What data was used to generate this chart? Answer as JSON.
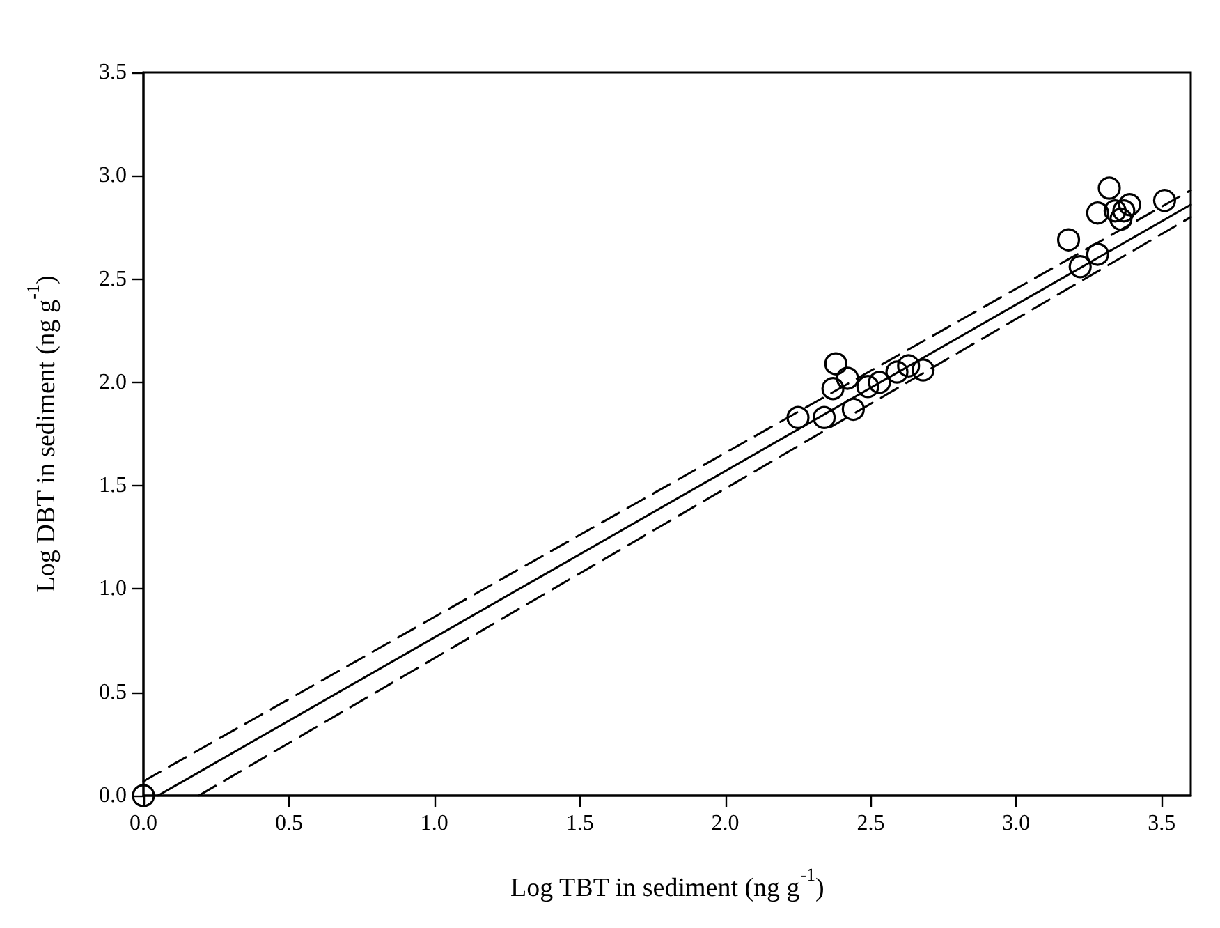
{
  "chart_data": {
    "type": "scatter",
    "xlabel": "Log TBT in sediment (ng g$^{-1}$)",
    "ylabel": "Log DBT in sediment (ng g$^{-1}$)",
    "xlim": [
      0,
      3.6
    ],
    "ylim": [
      0,
      3.5
    ],
    "xticks": [
      {
        "value": 0,
        "label": "0.0"
      },
      0.5,
      {
        "value": 1,
        "label": "1.0"
      },
      1.5,
      {
        "value": 2,
        "label": "2.0"
      },
      2.5,
      {
        "value": 3,
        "label": "3.0"
      },
      3.5
    ],
    "yticks": [
      {
        "value": 0,
        "label": "0.0"
      },
      0.5,
      {
        "value": 1,
        "label": "1.0"
      },
      1.5,
      {
        "value": 2,
        "label": "2.0"
      },
      2.5,
      {
        "value": 3,
        "label": "3.0"
      },
      3.5
    ],
    "grid": false,
    "marker": "circle",
    "series": [
      {
        "type": "scatter",
        "color": "#000000",
        "x": [
          0,
          2.25,
          2.34,
          2.38,
          2.42,
          2.37,
          2.44,
          2.49,
          2.53,
          2.59,
          2.63,
          2.68,
          3.18,
          3.22,
          3.28,
          3.28,
          3.34,
          3.37,
          3.39,
          3.36,
          3.32,
          3.51
        ],
        "values": [
          0,
          1.83,
          1.83,
          2.09,
          2.02,
          1.97,
          1.87,
          1.98,
          2.0,
          2.05,
          2.08,
          2.06,
          2.69,
          2.56,
          2.62,
          2.82,
          2.83,
          2.83,
          2.86,
          2.79,
          2.94,
          2.88
        ]
      },
      {
        "type": "line",
        "color": "#000000",
        "marker": "none",
        "line_style": "solid",
        "x": [
          0.05,
          3.6
        ],
        "values": [
          0,
          2.86
        ]
      },
      {
        "type": "line",
        "color": "#000000",
        "marker": "none",
        "line_style": "dashed",
        "x": [
          0,
          3.6
        ],
        "values": [
          0.07,
          2.93
        ]
      },
      {
        "type": "line",
        "color": "#000000",
        "marker": "none",
        "line_style": "dashed",
        "x": [
          0.19,
          3.6
        ],
        "values": [
          0,
          2.8
        ]
      }
    ]
  }
}
